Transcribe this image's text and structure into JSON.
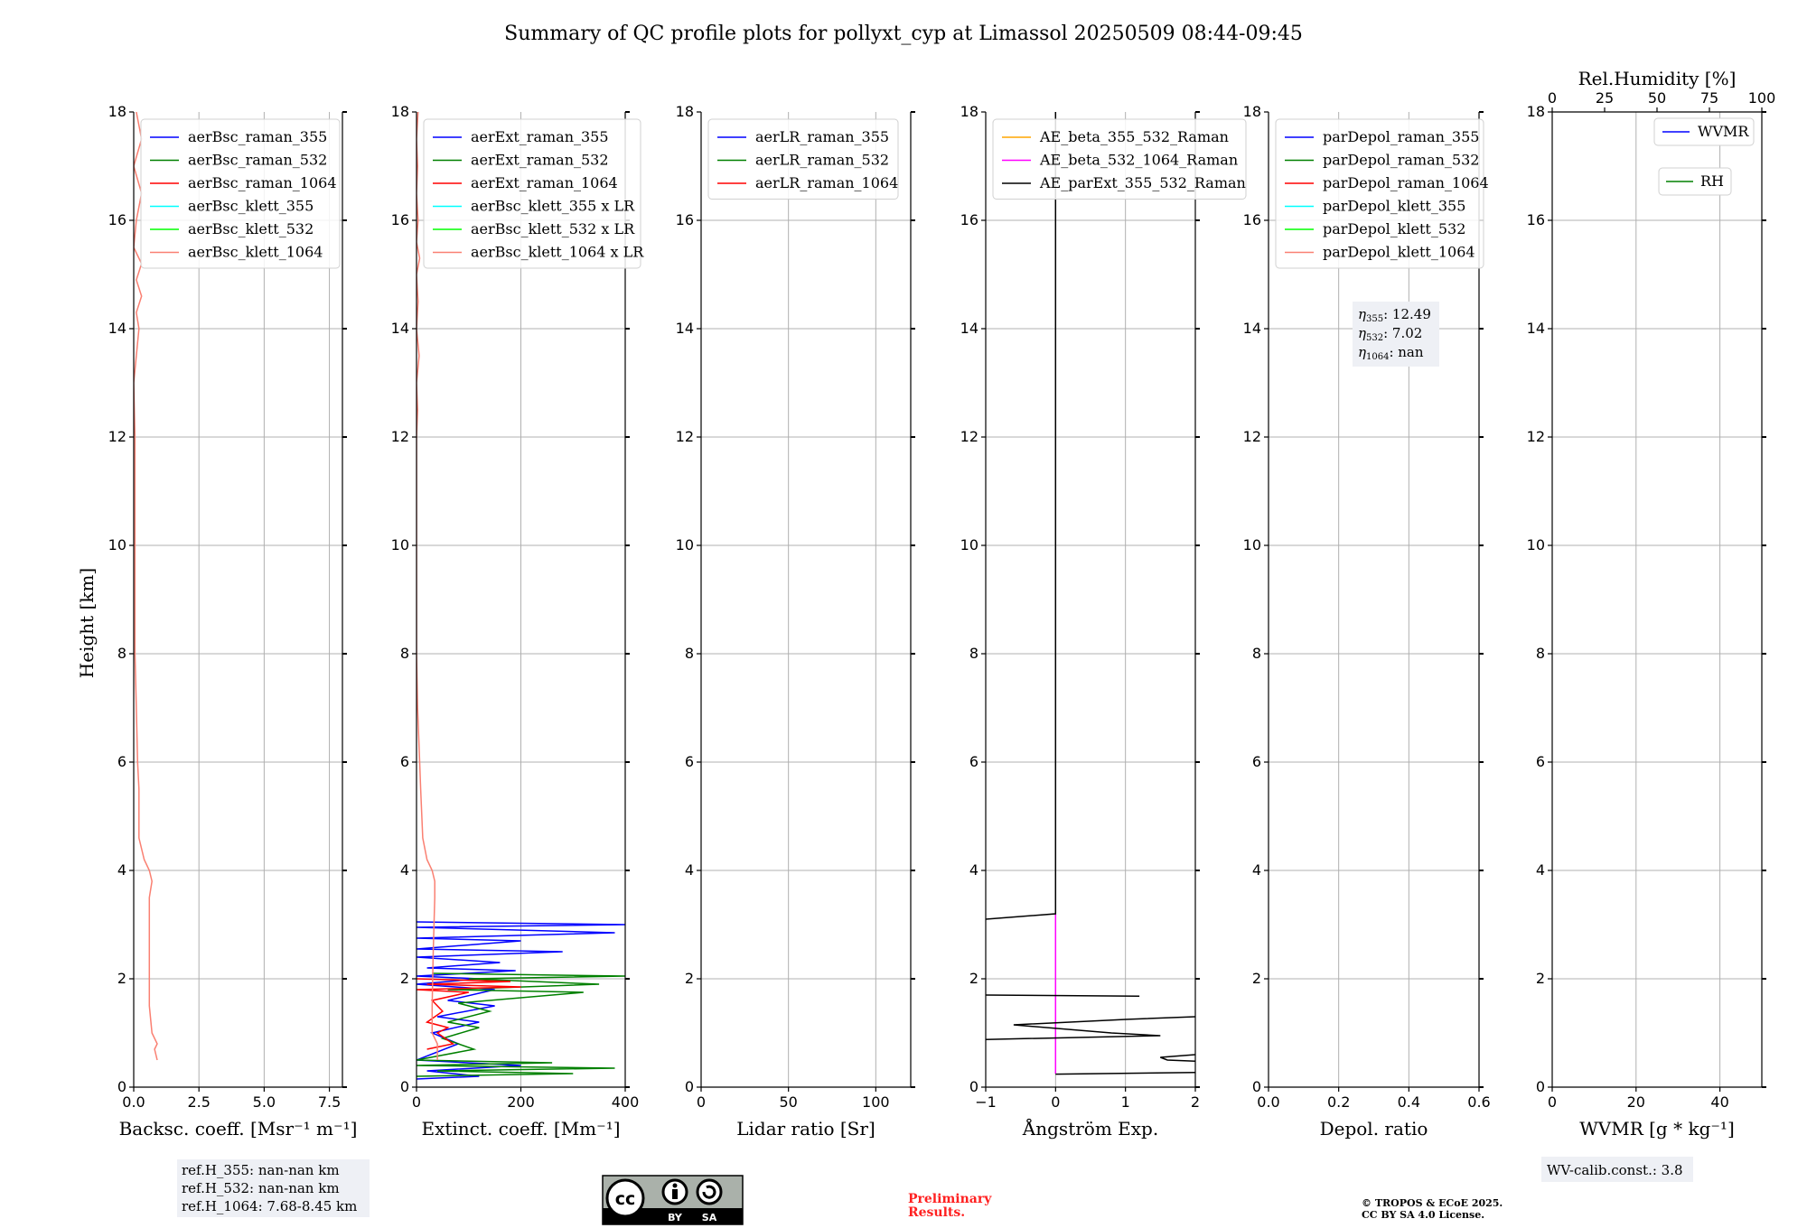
{
  "title": "Summary of QC profile plots for pollyxt_cyp at Limassol 20250509 08:44-09:45",
  "ylabel": "Height [km]",
  "y_ticks": [
    "0",
    "2",
    "4",
    "6",
    "8",
    "10",
    "12",
    "14",
    "16",
    "18"
  ],
  "colors": {
    "raman_355": "#0000ff",
    "raman_532": "#008000",
    "raman_1064": "#ff0000",
    "klett_355": "#00ffff",
    "klett_532": "#00ff00",
    "klett_1064": "#fa8072",
    "orange": "#ffa500",
    "magenta": "#ff00ff",
    "black": "#000000"
  },
  "chart_data": [
    {
      "type": "line",
      "xlabel": "Backsc. coeff. [Msr⁻¹ m⁻¹]",
      "xlim": [
        0,
        8
      ],
      "ylim": [
        0,
        18
      ],
      "x_ticks": [
        {
          "v": 0,
          "t": "0.0"
        },
        {
          "v": 2.5,
          "t": "2.5"
        },
        {
          "v": 5,
          "t": "5.0"
        },
        {
          "v": 7.5,
          "t": "7.5"
        }
      ],
      "legend": [
        "aerBsc_raman_355",
        "aerBsc_raman_532",
        "aerBsc_raman_1064",
        "aerBsc_klett_355",
        "aerBsc_klett_532",
        "aerBsc_klett_1064"
      ],
      "legend_colors": [
        "#0000ff",
        "#008000",
        "#ff0000",
        "#00ffff",
        "#00ff00",
        "#fa8072"
      ],
      "series": [
        {
          "color": "#fa8072",
          "points": [
            [
              0.9,
              0.5
            ],
            [
              0.8,
              0.7
            ],
            [
              0.9,
              0.8
            ],
            [
              0.7,
              1.0
            ],
            [
              0.6,
              1.5
            ],
            [
              0.6,
              2.5
            ],
            [
              0.6,
              3.5
            ],
            [
              0.7,
              3.8
            ],
            [
              0.6,
              4.0
            ],
            [
              0.4,
              4.2
            ],
            [
              0.2,
              4.6
            ],
            [
              0.2,
              5.5
            ],
            [
              0.15,
              6.0
            ],
            [
              0.1,
              7.0
            ],
            [
              0.05,
              8.0
            ],
            [
              0.05,
              10.0
            ],
            [
              0.05,
              12.0
            ],
            [
              0.0,
              13.0
            ],
            [
              0.1,
              13.5
            ],
            [
              0.2,
              14.0
            ],
            [
              0.1,
              14.3
            ],
            [
              0.3,
              14.6
            ],
            [
              0.1,
              14.9
            ],
            [
              0.3,
              15.2
            ],
            [
              0.0,
              15.5
            ],
            [
              0.1,
              16.0
            ],
            [
              0.3,
              16.5
            ],
            [
              0.0,
              17.0
            ],
            [
              0.3,
              17.5
            ],
            [
              0.1,
              18.0
            ]
          ]
        }
      ],
      "notes": [
        "ref.H_355: nan-nan km",
        "ref.H_532: nan-nan km",
        "ref.H_1064: 7.68-8.45 km"
      ]
    },
    {
      "type": "line",
      "xlabel": "Extinct. coeff. [Mm⁻¹]",
      "xlim": [
        0,
        400
      ],
      "ylim": [
        0,
        18
      ],
      "x_ticks": [
        {
          "v": 0,
          "t": "0"
        },
        {
          "v": 200,
          "t": "200"
        },
        {
          "v": 400,
          "t": "400"
        }
      ],
      "legend": [
        "aerExt_raman_355",
        "aerExt_raman_532",
        "aerExt_raman_1064",
        "aerBsc_klett_355 x LR",
        "aerBsc_klett_532 x LR",
        "aerBsc_klett_1064 x LR"
      ],
      "legend_colors": [
        "#0000ff",
        "#008000",
        "#ff0000",
        "#00ffff",
        "#00ff00",
        "#fa8072"
      ],
      "series": [
        {
          "color": "#0000ff",
          "points": [
            [
              0,
              3.05
            ],
            [
              400,
              3.0
            ],
            [
              0,
              2.95
            ],
            [
              380,
              2.85
            ],
            [
              0,
              2.75
            ],
            [
              200,
              2.7
            ],
            [
              0,
              2.55
            ],
            [
              280,
              2.5
            ],
            [
              0,
              2.4
            ],
            [
              160,
              2.3
            ],
            [
              20,
              2.2
            ],
            [
              190,
              2.15
            ],
            [
              0,
              2.05
            ],
            [
              120,
              2.0
            ],
            [
              0,
              1.9
            ],
            [
              150,
              1.8
            ],
            [
              60,
              1.6
            ],
            [
              150,
              1.5
            ],
            [
              40,
              1.3
            ],
            [
              120,
              1.2
            ],
            [
              30,
              1.0
            ],
            [
              80,
              0.8
            ],
            [
              0,
              0.5
            ],
            [
              200,
              0.4
            ],
            [
              20,
              0.3
            ],
            [
              120,
              0.2
            ],
            [
              0,
              0.15
            ]
          ]
        },
        {
          "color": "#008000",
          "points": [
            [
              30,
              2.1
            ],
            [
              400,
              2.05
            ],
            [
              100,
              2.0
            ],
            [
              350,
              1.9
            ],
            [
              60,
              1.8
            ],
            [
              320,
              1.75
            ],
            [
              80,
              1.55
            ],
            [
              140,
              1.4
            ],
            [
              60,
              1.2
            ],
            [
              120,
              1.1
            ],
            [
              50,
              0.9
            ],
            [
              110,
              0.7
            ],
            [
              0,
              0.5
            ],
            [
              260,
              0.45
            ],
            [
              0,
              0.4
            ],
            [
              380,
              0.35
            ],
            [
              40,
              0.3
            ],
            [
              300,
              0.25
            ],
            [
              0,
              0.2
            ]
          ]
        },
        {
          "color": "#ff0000",
          "points": [
            [
              0,
              2.0
            ],
            [
              180,
              1.95
            ],
            [
              20,
              1.9
            ],
            [
              200,
              1.85
            ],
            [
              0,
              1.8
            ],
            [
              100,
              1.75
            ],
            [
              30,
              1.6
            ],
            [
              50,
              1.4
            ],
            [
              20,
              1.2
            ],
            [
              60,
              1.1
            ],
            [
              40,
              1.0
            ],
            [
              70,
              0.8
            ],
            [
              20,
              0.7
            ]
          ]
        },
        {
          "color": "#fa8072",
          "points": [
            [
              40,
              0.5
            ],
            [
              40,
              0.8
            ],
            [
              30,
              1.0
            ],
            [
              30,
              1.5
            ],
            [
              32,
              2.5
            ],
            [
              35,
              3.5
            ],
            [
              35,
              3.8
            ],
            [
              30,
              4.0
            ],
            [
              20,
              4.2
            ],
            [
              12,
              4.6
            ],
            [
              8,
              5.5
            ],
            [
              6,
              6.0
            ],
            [
              2,
              7.0
            ],
            [
              0,
              8.0
            ],
            [
              0,
              10.0
            ],
            [
              0,
              12.0
            ],
            [
              2,
              12.5
            ],
            [
              0,
              13.0
            ],
            [
              5,
              13.5
            ],
            [
              0,
              14.0
            ],
            [
              3,
              14.5
            ],
            [
              0,
              15.0
            ],
            [
              6,
              15.3
            ],
            [
              0,
              15.6
            ],
            [
              3,
              16.0
            ],
            [
              0,
              16.5
            ],
            [
              2,
              17.0
            ],
            [
              0,
              17.5
            ],
            [
              3,
              18.0
            ]
          ]
        }
      ]
    },
    {
      "type": "line",
      "xlabel": "Lidar ratio [Sr]",
      "xlim": [
        0,
        120
      ],
      "ylim": [
        0,
        18
      ],
      "x_ticks": [
        {
          "v": 0,
          "t": "0"
        },
        {
          "v": 50,
          "t": "50"
        },
        {
          "v": 100,
          "t": "100"
        }
      ],
      "legend": [
        "aerLR_raman_355",
        "aerLR_raman_532",
        "aerLR_raman_1064"
      ],
      "legend_colors": [
        "#0000ff",
        "#008000",
        "#ff0000"
      ],
      "series": []
    },
    {
      "type": "line",
      "xlabel": "Ångström Exp.",
      "xlim": [
        -1,
        2
      ],
      "ylim": [
        0,
        18
      ],
      "x_ticks": [
        {
          "v": -1,
          "t": "−1"
        },
        {
          "v": 0,
          "t": "0"
        },
        {
          "v": 1,
          "t": "1"
        },
        {
          "v": 2,
          "t": "2"
        }
      ],
      "legend": [
        "AE_beta_355_532_Raman",
        "AE_beta_532_1064_Raman",
        "AE_parExt_355_532_Raman"
      ],
      "legend_colors": [
        "#ffa500",
        "#ff00ff",
        "#000000"
      ],
      "series": [
        {
          "color": "#ff00ff",
          "points": [
            [
              0,
              0.25
            ],
            [
              0,
              3.2
            ]
          ]
        },
        {
          "color": "#000000",
          "points": [
            [
              0,
              18.0
            ],
            [
              0,
              3.2
            ],
            [
              -1,
              3.1
            ]
          ]
        },
        {
          "color": "#000000",
          "points": [
            [
              -1,
              1.7
            ],
            [
              1.2,
              1.68
            ]
          ]
        },
        {
          "color": "#000000",
          "points": [
            [
              2,
              1.3
            ],
            [
              1.0,
              1.25
            ],
            [
              -0.6,
              1.15
            ],
            [
              0.8,
              1.0
            ],
            [
              1.5,
              0.95
            ],
            [
              -1,
              0.88
            ]
          ]
        },
        {
          "color": "#000000",
          "points": [
            [
              2,
              0.6
            ],
            [
              1.5,
              0.55
            ],
            [
              1.6,
              0.5
            ],
            [
              2,
              0.48
            ]
          ]
        },
        {
          "color": "#000000",
          "points": [
            [
              0,
              0.24
            ],
            [
              2,
              0.27
            ]
          ]
        }
      ]
    },
    {
      "type": "line",
      "xlabel": "Depol. ratio",
      "xlim": [
        0,
        0.6
      ],
      "ylim": [
        0,
        18
      ],
      "x_ticks": [
        {
          "v": 0,
          "t": "0.0"
        },
        {
          "v": 0.2,
          "t": "0.2"
        },
        {
          "v": 0.4,
          "t": "0.4"
        },
        {
          "v": 0.6,
          "t": "0.6"
        }
      ],
      "legend": [
        "parDepol_raman_355",
        "parDepol_raman_532",
        "parDepol_raman_1064",
        "parDepol_klett_355",
        "parDepol_klett_532",
        "parDepol_klett_1064"
      ],
      "legend_colors": [
        "#0000ff",
        "#008000",
        "#ff0000",
        "#00ffff",
        "#00ff00",
        "#fa8072"
      ],
      "series": [],
      "eta": [
        {
          "sym": "η",
          "sub": "355",
          "val": ": 12.49"
        },
        {
          "sym": "η",
          "sub": "532",
          "val": ": 7.02"
        },
        {
          "sym": "η",
          "sub": "1064",
          "val": ": nan"
        }
      ]
    },
    {
      "type": "line",
      "xlabel": "WVMR [g * kg⁻¹]",
      "xlim": [
        0,
        50
      ],
      "ylim": [
        0,
        18
      ],
      "x_ticks": [
        {
          "v": 0,
          "t": "0"
        },
        {
          "v": 20,
          "t": "20"
        },
        {
          "v": 40,
          "t": "40"
        }
      ],
      "top_label": "Rel.Humidity [%]",
      "top_ticks": [
        "0",
        "25",
        "50",
        "75",
        "100"
      ],
      "legend_wvmr": "WVMR",
      "legend_rh": "RH",
      "series": [],
      "notes": [
        "WV-calib.const.: 3.8"
      ]
    }
  ],
  "footer": {
    "license_badge": {
      "cc": "cc",
      "by": "BY",
      "sa": "SA"
    },
    "preliminary": [
      "Preliminary",
      "Results."
    ],
    "copyright": [
      "© TROPOS & ECoE 2025.",
      "CC BY SA 4.0 License."
    ]
  }
}
